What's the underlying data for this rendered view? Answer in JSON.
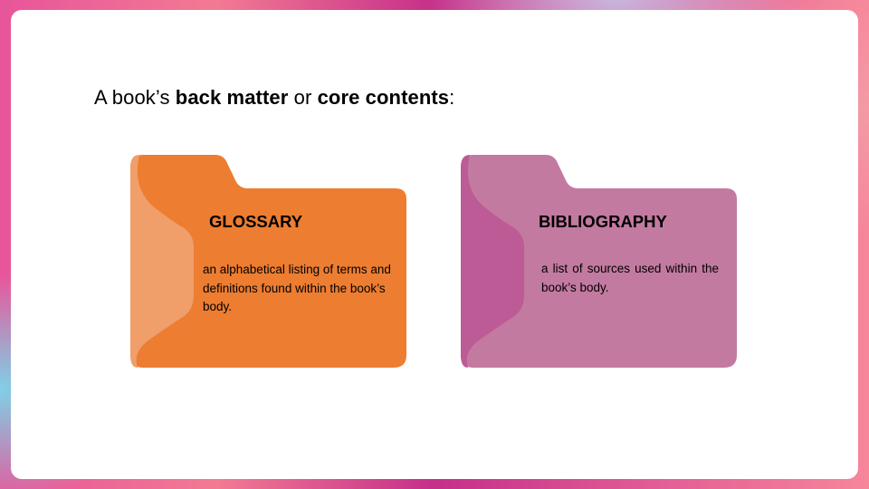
{
  "heading": {
    "prefix": "A book’s ",
    "bold1": "back matter",
    "middle": " or ",
    "bold2": "core contents",
    "suffix": ":"
  },
  "folders": [
    {
      "title": "GLOSSARY",
      "description": "an alphabetical listing of terms and definitions found within the book’s body.",
      "color": "#ed7d31",
      "accent_color": "#f09e6a"
    },
    {
      "title": "BIBLIOGRAPHY",
      "description": "a list of sources used within the book’s body.",
      "color": "#c37aa0",
      "accent_color": "#bd5b96"
    }
  ]
}
